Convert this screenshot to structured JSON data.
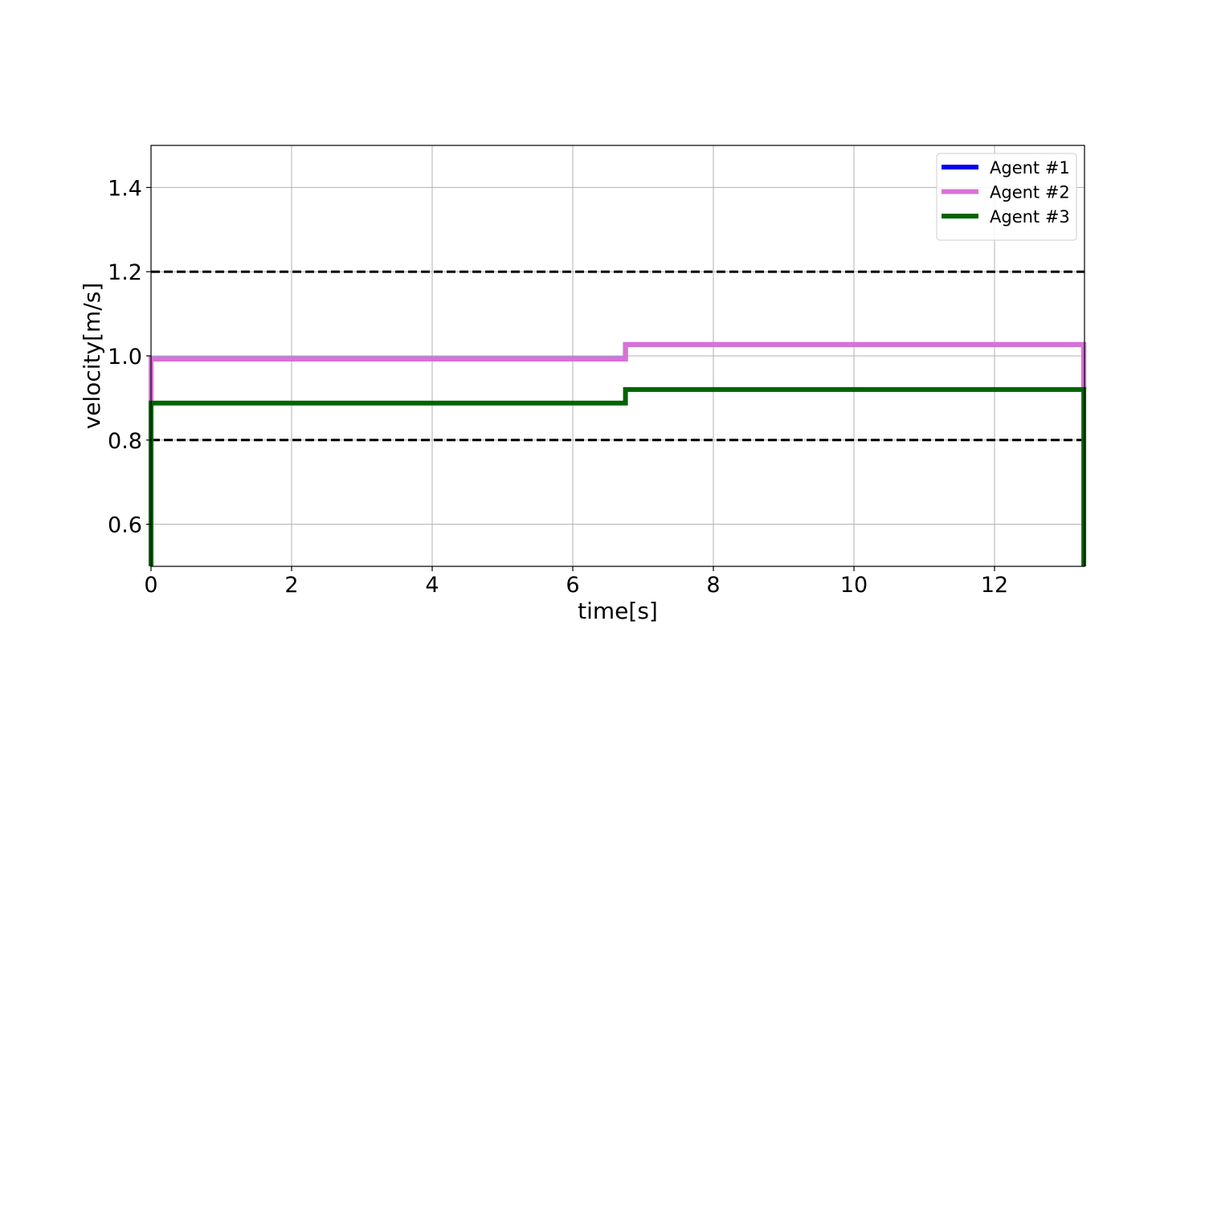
{
  "chart_data": {
    "type": "line",
    "title": "",
    "xlabel": "time[s]",
    "ylabel": "velocity[m/s]",
    "xlim": [
      0,
      13.28
    ],
    "ylim": [
      0.5,
      1.5
    ],
    "x_ticks": [
      0,
      2,
      4,
      6,
      8,
      10,
      12
    ],
    "y_ticks": [
      0.6,
      0.8,
      1.0,
      1.2,
      1.4
    ],
    "x_tick_labels": [
      "0",
      "2",
      "4",
      "6",
      "8",
      "10",
      "12"
    ],
    "y_tick_labels": [
      "0.6",
      "0.8",
      "1.0",
      "1.2",
      "1.4"
    ],
    "grid": true,
    "legend_position": "top-right",
    "reference_lines": [
      {
        "y": 1.2,
        "style": "dashed",
        "color": "#000000"
      },
      {
        "y": 0.8,
        "style": "dashed",
        "color": "#000000"
      }
    ],
    "series": [
      {
        "name": "Agent #1",
        "color": "#0000ee",
        "x": [
          0,
          0,
          6.75,
          6.75,
          13.27,
          13.27
        ],
        "y": [
          0.5,
          0.993,
          0.993,
          1.027,
          1.027,
          0.92
        ]
      },
      {
        "name": "Agent #2",
        "color": "#da70d6",
        "x": [
          0,
          0,
          6.75,
          6.75,
          13.27,
          13.27
        ],
        "y": [
          0.5,
          0.993,
          0.993,
          1.027,
          1.027,
          0.92
        ]
      },
      {
        "name": "Agent #3",
        "color": "#006400",
        "x": [
          0,
          0,
          6.75,
          6.75,
          13.27,
          13.27
        ],
        "y": [
          0.5,
          0.888,
          0.888,
          0.92,
          0.92,
          0.5
        ]
      }
    ]
  }
}
